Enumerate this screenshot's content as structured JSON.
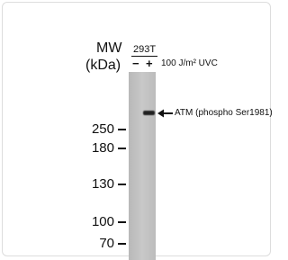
{
  "blot": {
    "mw_label": "MW",
    "unit_label": "(kDa)",
    "cell_line": "293T",
    "lanes": [
      "−",
      "+"
    ],
    "treatment": "100 J/m² UVC",
    "band_label": "ATM (phospho Ser1981)",
    "markers": [
      250,
      180,
      130,
      100,
      70
    ]
  }
}
